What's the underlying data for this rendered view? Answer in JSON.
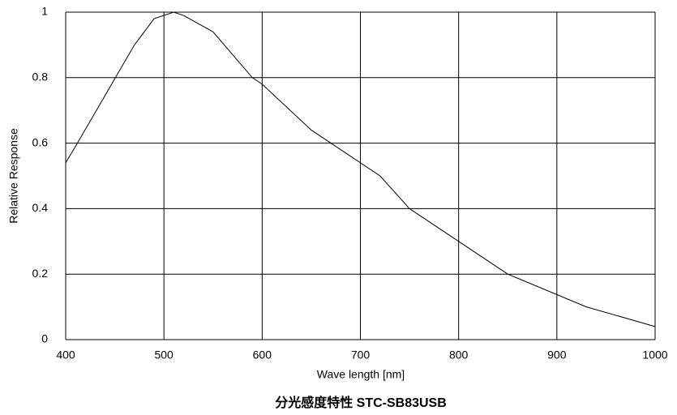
{
  "chart_data": {
    "type": "line",
    "title": "分光感度特性  STC-SB83USB",
    "x_label": "Wave length [nm]",
    "y_label": "Relative Response",
    "x": [
      400,
      410,
      470,
      490,
      510,
      520,
      550,
      590,
      600,
      650,
      720,
      750,
      850,
      930,
      1000
    ],
    "values": [
      0.54,
      0.59,
      0.9,
      0.98,
      1.0,
      0.99,
      0.94,
      0.8,
      0.78,
      0.64,
      0.5,
      0.4,
      0.2,
      0.1,
      0.04
    ],
    "color": "#000000",
    "xlim": [
      400,
      1000
    ],
    "xticks": [
      400,
      500,
      600,
      700,
      800,
      900,
      1000
    ],
    "ylim": [
      0,
      1
    ],
    "yticks": [
      0,
      0.2,
      0.4,
      0.6,
      0.8,
      1
    ],
    "grid": true
  }
}
